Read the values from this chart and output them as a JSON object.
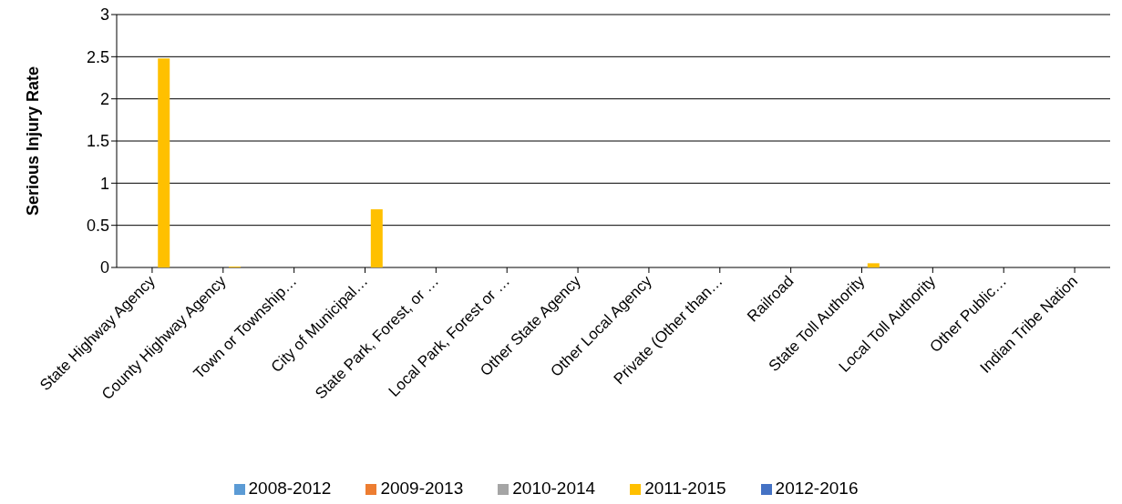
{
  "chart_data": {
    "type": "bar",
    "ylabel": "Serious Injury Rate",
    "categories": [
      "State Highway Agency",
      "County Highway Agency",
      "Town or Township…",
      "City of Municipal…",
      "State Park, Forest, or …",
      "Local Park, Forest or …",
      "Other State Agency",
      "Other Local Agency",
      "Private (Other than…",
      "Railroad",
      "State Toll Authority",
      "Local Toll Authority",
      "Other Public…",
      "Indian Tribe Nation"
    ],
    "series": [
      {
        "name": "2008-2012",
        "color": "#5b9bd5",
        "values": [
          0,
          0,
          0,
          0,
          0,
          0,
          0,
          0,
          0,
          0,
          0,
          0,
          0,
          0
        ]
      },
      {
        "name": "2009-2013",
        "color": "#ed7d31",
        "values": [
          0,
          0,
          0,
          0,
          0,
          0,
          0,
          0,
          0,
          0,
          0,
          0,
          0,
          0
        ]
      },
      {
        "name": "2010-2014",
        "color": "#a5a5a5",
        "values": [
          0,
          0,
          0,
          0,
          0,
          0,
          0,
          0,
          0,
          0,
          0,
          0,
          0,
          0
        ]
      },
      {
        "name": "2011-2015",
        "color": "#ffc000",
        "values": [
          2.48,
          0.01,
          0,
          0.69,
          0,
          0,
          0,
          0,
          0,
          0,
          0.05,
          0,
          0,
          0
        ]
      },
      {
        "name": "2012-2016",
        "color": "#4472c4",
        "values": [
          0,
          0,
          0,
          0,
          0,
          0,
          0,
          0,
          0,
          0,
          0,
          0,
          0,
          0
        ]
      }
    ],
    "ylim": [
      0,
      3
    ],
    "yticks": [
      0,
      0.5,
      1,
      1.5,
      2,
      2.5,
      3
    ],
    "grid": "y",
    "legend": "bottom"
  }
}
